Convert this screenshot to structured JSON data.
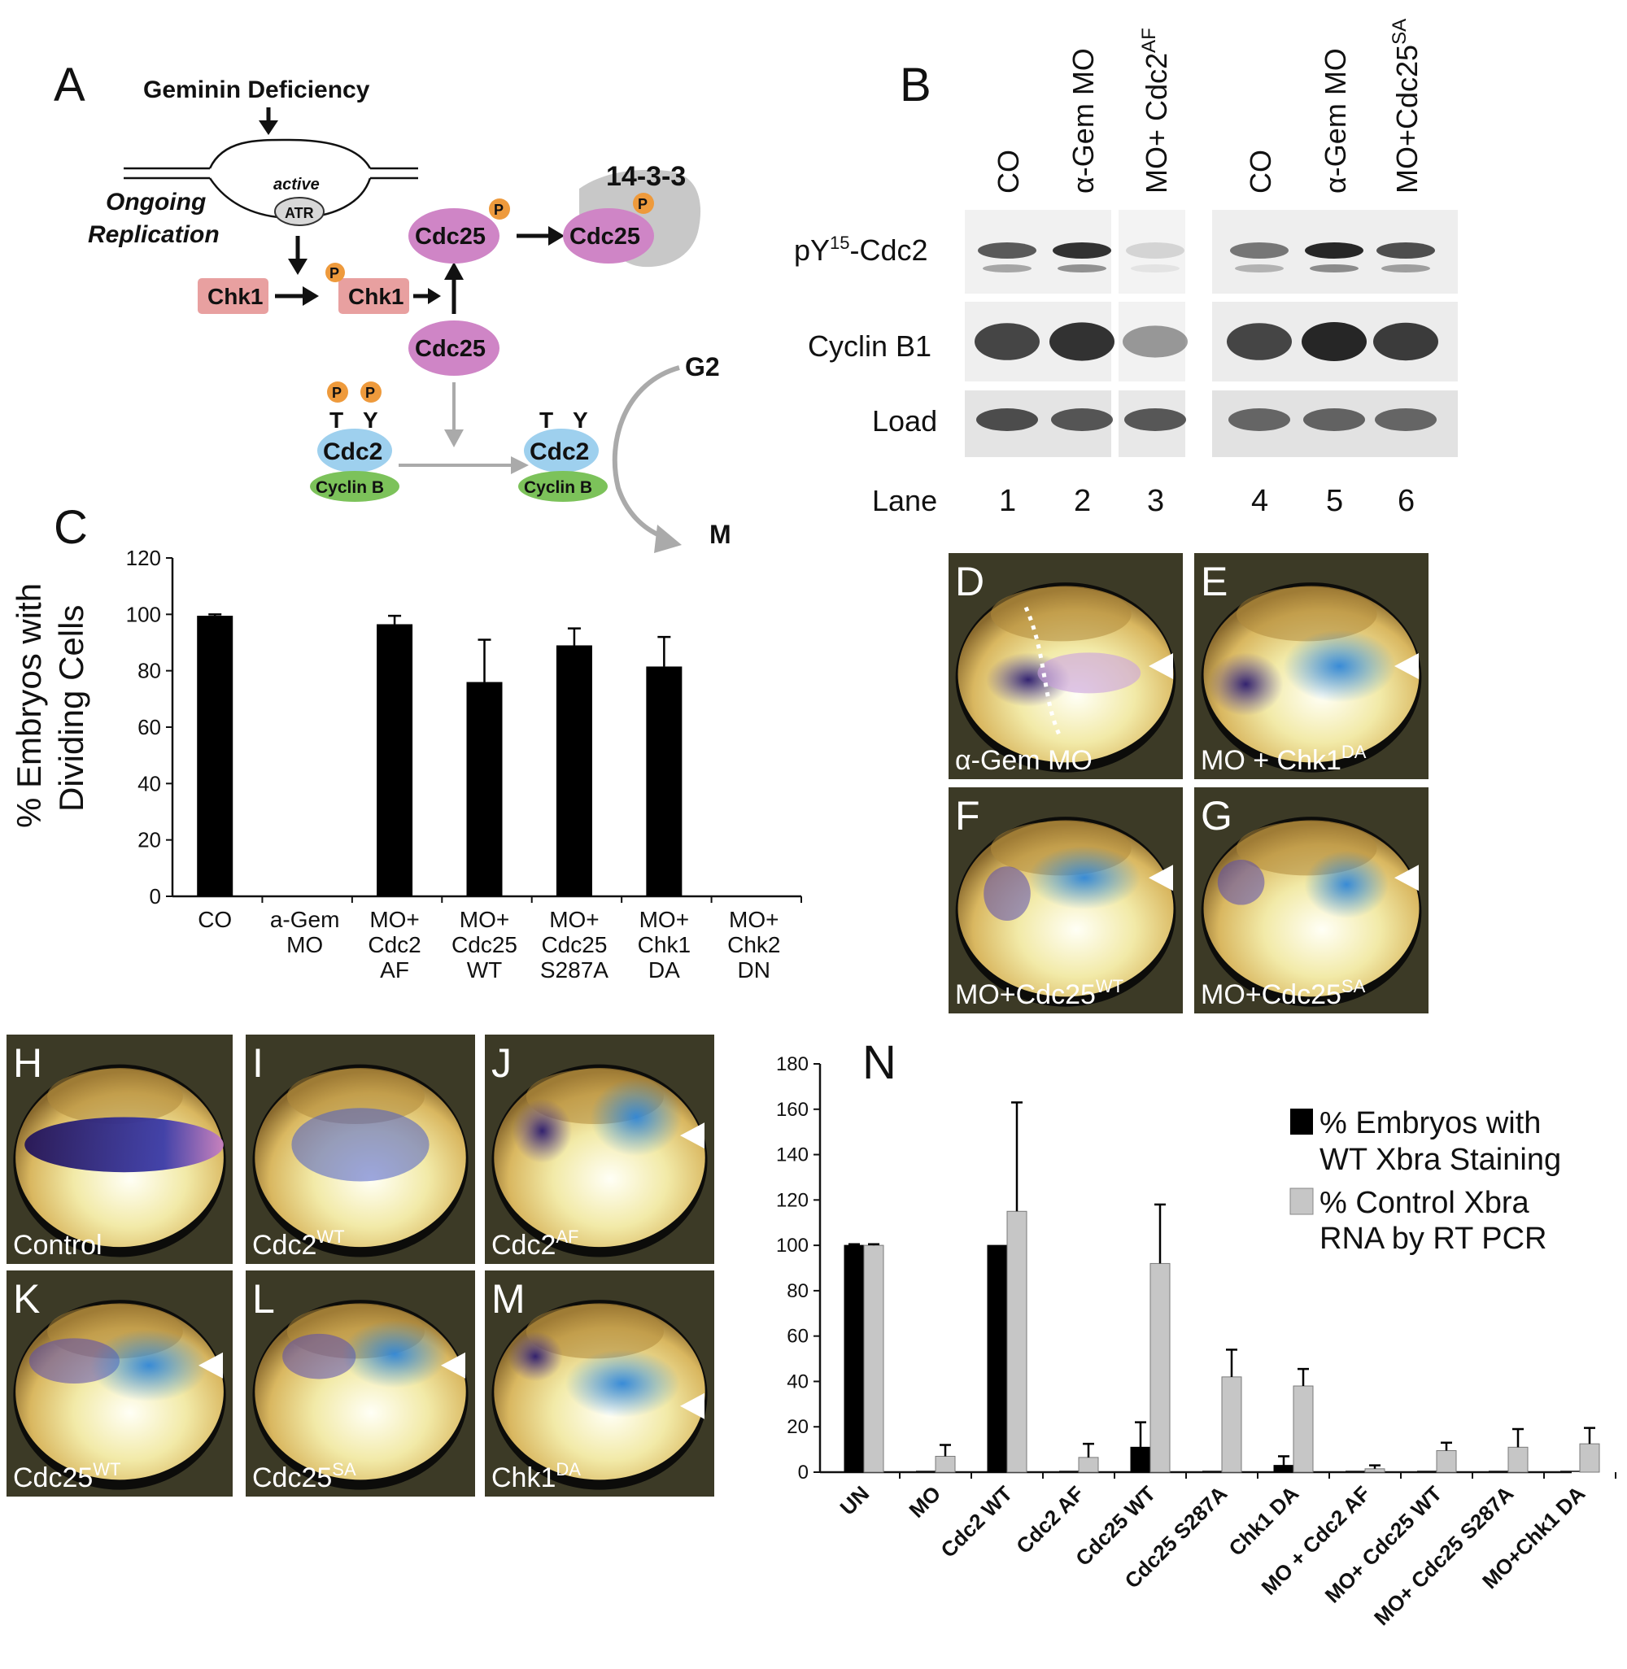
{
  "panel_labels": {
    "A": "A",
    "B": "B",
    "C": "C",
    "D": "D",
    "E": "E",
    "F": "F",
    "G": "G",
    "H": "H",
    "I": "I",
    "J": "J",
    "K": "K",
    "L": "L",
    "M": "M",
    "N": "N"
  },
  "diagram": {
    "geminin": "Geminin Deficiency",
    "ongoing": "Ongoing",
    "replication": "Replication",
    "active": "active",
    "atr": "ATR",
    "chk1": "Chk1",
    "cdc25": "Cdc25",
    "p": "P",
    "p1433": "14-3-3",
    "cdc2": "Cdc2",
    "cyclinb": "Cyclin B",
    "t": "T",
    "y": "Y",
    "g2": "G2",
    "m": "M",
    "colors": {
      "chk1": "#e8a0a0",
      "cdc25": "#cf85c6",
      "cdc2": "#9ed0ee",
      "cyclinb": "#7cc25a",
      "phospho": "#ee9a3c",
      "p1433": "#c8c8c8"
    }
  },
  "blot": {
    "columns": [
      "CO",
      "α-Gem MO",
      "MO+ Cdc2",
      "CO",
      "α-Gem MO",
      "MO+Cdc25"
    ],
    "column_sups": [
      "",
      "",
      "AF",
      "",
      "",
      "SA"
    ],
    "row_py_main": "pY",
    "row_py_sup": "15",
    "row_py_rest": "-Cdc2",
    "row_cyclin": "Cyclin B1",
    "row_load": "Load",
    "lane_label": "Lane",
    "lanes": [
      "1",
      "2",
      "3",
      "4",
      "5",
      "6"
    ]
  },
  "chart_c": {
    "ylabel_line1": "% Embryos with",
    "ylabel_line2": "Dividing Cells",
    "yticks": [
      "120",
      "100",
      "80",
      "60",
      "40",
      "20",
      "0"
    ],
    "cat_lines": [
      [
        "CO"
      ],
      [
        "a-Gem",
        "MO"
      ],
      [
        "MO+",
        "Cdc2",
        "AF"
      ],
      [
        "MO+",
        "Cdc25",
        "WT"
      ],
      [
        "MO+",
        "Cdc25",
        "S287A"
      ],
      [
        "MO+",
        "Chk1",
        "DA"
      ],
      [
        "MO+",
        "Chk2",
        "DN"
      ]
    ]
  },
  "chart_data": [
    {
      "type": "bar",
      "title": "",
      "ylabel": "% Embryos with Dividing Cells",
      "categories": [
        "CO",
        "a-Gem MO",
        "MO+ Cdc2 AF",
        "MO+ Cdc25 WT",
        "MO+ Cdc25 S287A",
        "MO+ Chk1 DA",
        "MO+ Chk2 DN"
      ],
      "values": [
        99.5,
        0,
        96.5,
        76,
        89,
        81.5,
        0
      ],
      "error": [
        0.5,
        0,
        3,
        15,
        6,
        10.5,
        0
      ],
      "ylim": [
        0,
        120
      ]
    },
    {
      "type": "bar",
      "title": "",
      "ylim": [
        0,
        180
      ],
      "categories": [
        "UN",
        "MO",
        "Cdc2 WT",
        "Cdc2 AF",
        "Cdc25 WT",
        "Cdc25 S287A",
        "Chk1 DA",
        "MO + Cdc2 AF",
        "MO+ Cdc25 WT",
        "MO+ Cdc25 S287A",
        "MO+Chk1 DA"
      ],
      "series": [
        {
          "name": "% Embryos with WT Xbra Staining",
          "values": [
            100,
            0,
            100,
            0,
            11,
            0,
            3,
            0,
            0,
            0,
            0
          ],
          "error": [
            0.5,
            0,
            0,
            0,
            11,
            0,
            4,
            0,
            0,
            0,
            0
          ]
        },
        {
          "name": "% Control Xbra RNA by RT PCR",
          "values": [
            100,
            7,
            115,
            6.5,
            92,
            42,
            38,
            1.5,
            9.5,
            11,
            12.5
          ],
          "error": [
            0.5,
            5,
            48,
            6,
            26,
            12,
            7.5,
            1.5,
            3.5,
            8,
            7
          ]
        }
      ]
    }
  ],
  "chart_n": {
    "yticks": [
      "180",
      "160",
      "140",
      "120",
      "100",
      "80",
      "60",
      "40",
      "20",
      "0"
    ],
    "legend1_line1": "% Embryos with",
    "legend1_line2": "WT Xbra Staining",
    "legend2_line1": " % Control Xbra",
    "legend2_line2": "RNA by RT PCR",
    "colors": {
      "black": "#000000",
      "gray": "#c6c6c6"
    }
  },
  "photos": {
    "D": {
      "label": "α-Gem MO",
      "sup": ""
    },
    "E": {
      "label": "MO + Chk1",
      "sup": "DA"
    },
    "F": {
      "label": "MO+Cdc25",
      "sup": "WT"
    },
    "G": {
      "label": "MO+Cdc25",
      "sup": "SA"
    },
    "H": {
      "label": "Control",
      "sup": ""
    },
    "I": {
      "label": "Cdc2",
      "sup": "WT"
    },
    "J": {
      "label": "Cdc2",
      "sup": "AF"
    },
    "K": {
      "label": "Cdc25",
      "sup": "WT"
    },
    "L": {
      "label": "Cdc25",
      "sup": "SA"
    },
    "M": {
      "label": "Chk1",
      "sup": "DA"
    }
  }
}
